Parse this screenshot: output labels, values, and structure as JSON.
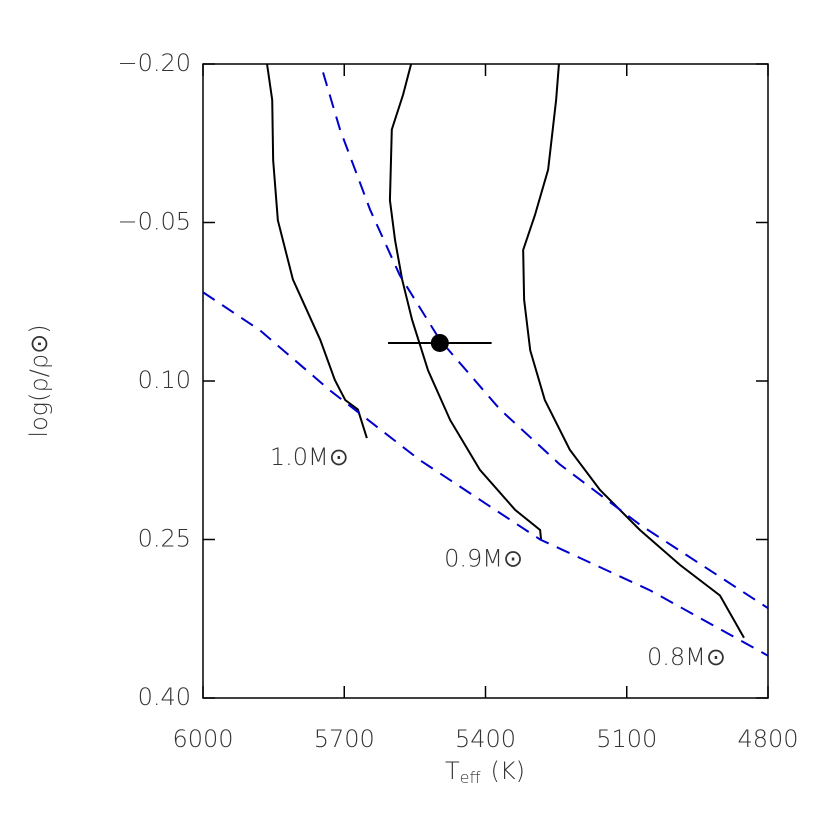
{
  "chart_data": {
    "type": "line",
    "xlabel": {
      "main": "T",
      "sub": "eff",
      "unit": "(K)"
    },
    "ylabel": "log(ρ/ρ⊙)",
    "xlim": [
      6000,
      4800
    ],
    "xticks": [
      6000,
      5700,
      5400,
      5100,
      4800
    ],
    "ylim": [
      -0.2,
      0.4
    ],
    "yinvert": true,
    "yticks": [
      {
        "value": -0.2,
        "label": "−0.20"
      },
      {
        "value": -0.05,
        "label": "−0.05"
      },
      {
        "value": 0.1,
        "label": "0.10"
      },
      0.25,
      {
        "value": 0.4,
        "label": "0.40"
      }
    ],
    "series": [
      {
        "name": "1.0M⊙",
        "color": "#000000",
        "dash": false,
        "x": [
          5864,
          5853,
          5851,
          5841,
          5809,
          5751,
          5720,
          5698,
          5671,
          5652
        ],
        "y": [
          -0.2,
          -0.166,
          -0.109,
          -0.052,
          0.004,
          0.061,
          0.099,
          0.118,
          0.127,
          0.154
        ]
      },
      {
        "name": "0.9M⊙",
        "color": "#000000",
        "dash": false,
        "x": [
          5558,
          5575,
          5599,
          5603,
          5592,
          5577,
          5556,
          5522,
          5475,
          5412,
          5337,
          5284,
          5282
        ],
        "y": [
          -0.2,
          -0.171,
          -0.138,
          -0.071,
          -0.033,
          0.004,
          0.042,
          0.09,
          0.137,
          0.184,
          0.222,
          0.241,
          0.25
        ]
      },
      {
        "name": "0.8M⊙",
        "color": "#000000",
        "dash": false,
        "x": [
          5244,
          5250,
          5267,
          5295,
          5320,
          5318,
          5305,
          5274,
          5221,
          5157,
          5072,
          4987,
          4902,
          4851
        ],
        "y": [
          -0.2,
          -0.166,
          -0.1,
          -0.057,
          -0.024,
          0.023,
          0.071,
          0.118,
          0.165,
          0.203,
          0.241,
          0.274,
          0.303,
          0.343
        ]
      },
      {
        "color": "#0000cc",
        "dash": true,
        "x": [
          5745,
          5709,
          5645,
          5582,
          5497,
          5369,
          5242,
          5072,
          4800
        ],
        "y": [
          -0.192,
          -0.138,
          -0.062,
          0.0,
          0.061,
          0.127,
          0.179,
          0.236,
          0.315
        ]
      },
      {
        "color": "#0000cc",
        "dash": true,
        "x": [
          6000,
          5879,
          5730,
          5539,
          5284,
          5051,
          4800
        ],
        "y": [
          0.016,
          0.052,
          0.109,
          0.175,
          0.25,
          0.298,
          0.36
        ]
      }
    ],
    "point": {
      "x": 5497,
      "y": 0.064,
      "xerr": 110,
      "color": "#000000"
    }
  }
}
